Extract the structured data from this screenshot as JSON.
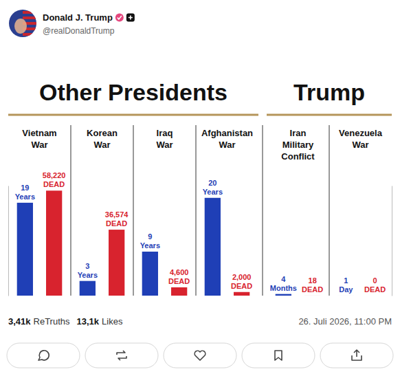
{
  "post": {
    "author": "Donald J. Trump",
    "handle": "@realDonaldTrump",
    "retruths": "3,41k",
    "retruths_label": "ReTruths",
    "likes": "13,1k",
    "likes_label": "Likes",
    "date": "26. Juli 2026, 11:00 PM"
  },
  "chart_data": {
    "type": "bar",
    "groups": [
      "Other Presidents",
      "Other Presidents",
      "Other Presidents",
      "Other Presidents",
      "Trump",
      "Trump"
    ],
    "categories": [
      "Vietnam War",
      "Korean War",
      "Iraq War",
      "Afghanistan War",
      "Iran Military Conflict",
      "Venezuela War"
    ],
    "series": [
      {
        "color": "#1f3fb6",
        "values": [
          19,
          3,
          9,
          20,
          0.333,
          0.0027
        ],
        "value_labels": [
          "19 Years",
          "3 Years",
          "9 Years",
          "20 Years",
          "4 Months",
          "1 Day"
        ]
      },
      {
        "color": "#d8232e",
        "axis": "y2",
        "values": [
          58220,
          36574,
          4600,
          2000,
          18,
          0
        ],
        "value_labels": [
          "58,220 DEAD",
          "36,574 DEAD",
          "4,600 DEAD",
          "2,000 DEAD",
          "18 DEAD",
          "0 DEAD"
        ]
      }
    ],
    "ylim": [
      0,
      22.5
    ],
    "yticks": [],
    "y2lim": [
      0,
      61000
    ],
    "y2ticks": [],
    "tick_labels": false,
    "data_labels": true
  }
}
